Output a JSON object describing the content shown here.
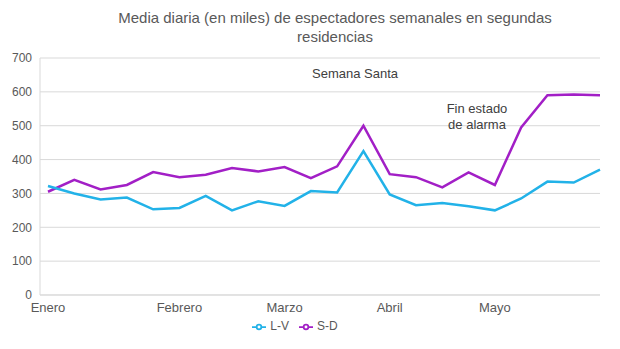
{
  "chart_data": {
    "type": "line",
    "title": "Media diaria (en miles) de espectadores semanales en segundas residencias",
    "categories": [
      "Enero",
      null,
      null,
      null,
      null,
      "Febrero",
      null,
      null,
      null,
      "Marzo",
      null,
      null,
      null,
      "Abril",
      null,
      null,
      null,
      "Mayo",
      null,
      null,
      null,
      null
    ],
    "series": [
      {
        "name": "S-D",
        "color": "#a21fc6",
        "values": [
          305,
          340,
          312,
          325,
          363,
          348,
          355,
          375,
          365,
          378,
          345,
          380,
          500,
          357,
          348,
          318,
          362,
          325,
          495,
          590,
          592,
          590
        ]
      },
      {
        "name": "L-V",
        "color": "#22b2e8",
        "values": [
          322,
          300,
          282,
          288,
          253,
          257,
          293,
          250,
          277,
          263,
          307,
          303,
          425,
          297,
          265,
          272,
          262,
          250,
          285,
          335,
          332,
          370
        ]
      }
    ],
    "ylim": [
      0,
      700
    ],
    "yticks": [
      0,
      100,
      200,
      300,
      400,
      500,
      600,
      700
    ],
    "grid": true,
    "legend": "bottom",
    "annotations": [
      {
        "text": "Semana Santa"
      },
      {
        "text": "Fin estado de alarma"
      }
    ]
  }
}
